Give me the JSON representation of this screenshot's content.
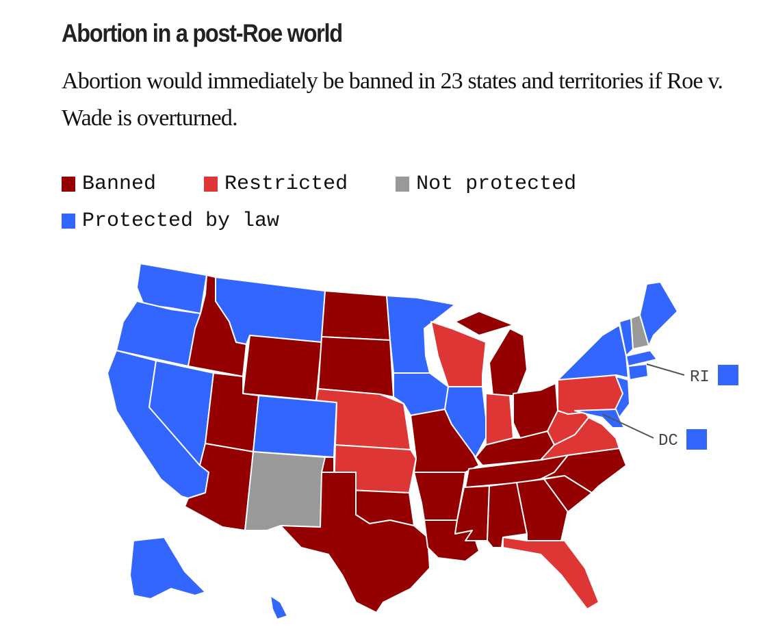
{
  "title": "Abortion in a post-Roe world",
  "subtitle": "Abortion would immediately be banned in 23 states and territories if Roe v. Wade is overturned.",
  "legend": [
    {
      "label": "Banned",
      "color": "#940000"
    },
    {
      "label": "Restricted",
      "color": "#de3535"
    },
    {
      "label": "Not protected",
      "color": "#999999"
    },
    {
      "label": "Protected by law",
      "color": "#3366ff"
    }
  ],
  "callouts": [
    {
      "label": "RI",
      "status": "Protected by law"
    },
    {
      "label": "DC",
      "status": "Protected by law"
    }
  ],
  "states": {
    "WA": "Protected by law",
    "OR": "Protected by law",
    "CA": "Protected by law",
    "NV": "Protected by law",
    "MT": "Protected by law",
    "CO": "Protected by law",
    "MN": "Protected by law",
    "IA": "Protected by law",
    "IL": "Protected by law",
    "NY": "Protected by law",
    "VT": "Protected by law",
    "ME": "Protected by law",
    "MA": "Protected by law",
    "CT": "Protected by law",
    "NJ": "Protected by law",
    "MD": "Protected by law",
    "AK": "Protected by law",
    "HI": "Protected by law",
    "ID": "Banned",
    "WY": "Banned",
    "UT": "Banned",
    "AZ": "Banned",
    "ND": "Banned",
    "SD": "Banned",
    "OK": "Banned",
    "TX": "Banned",
    "MO": "Banned",
    "AR": "Banned",
    "LA": "Banned",
    "MI": "Banned",
    "OH": "Banned",
    "KY": "Banned",
    "TN": "Banned",
    "MS": "Banned",
    "AL": "Banned",
    "GA": "Banned",
    "SC": "Banned",
    "NC": "Banned",
    "NE": "Restricted",
    "KS": "Restricted",
    "WI": "Restricted",
    "IN": "Restricted",
    "PA": "Restricted",
    "WV": "Restricted",
    "VA": "Restricted",
    "FL": "Restricted",
    "NM": "Not protected",
    "NH": "Not protected"
  }
}
